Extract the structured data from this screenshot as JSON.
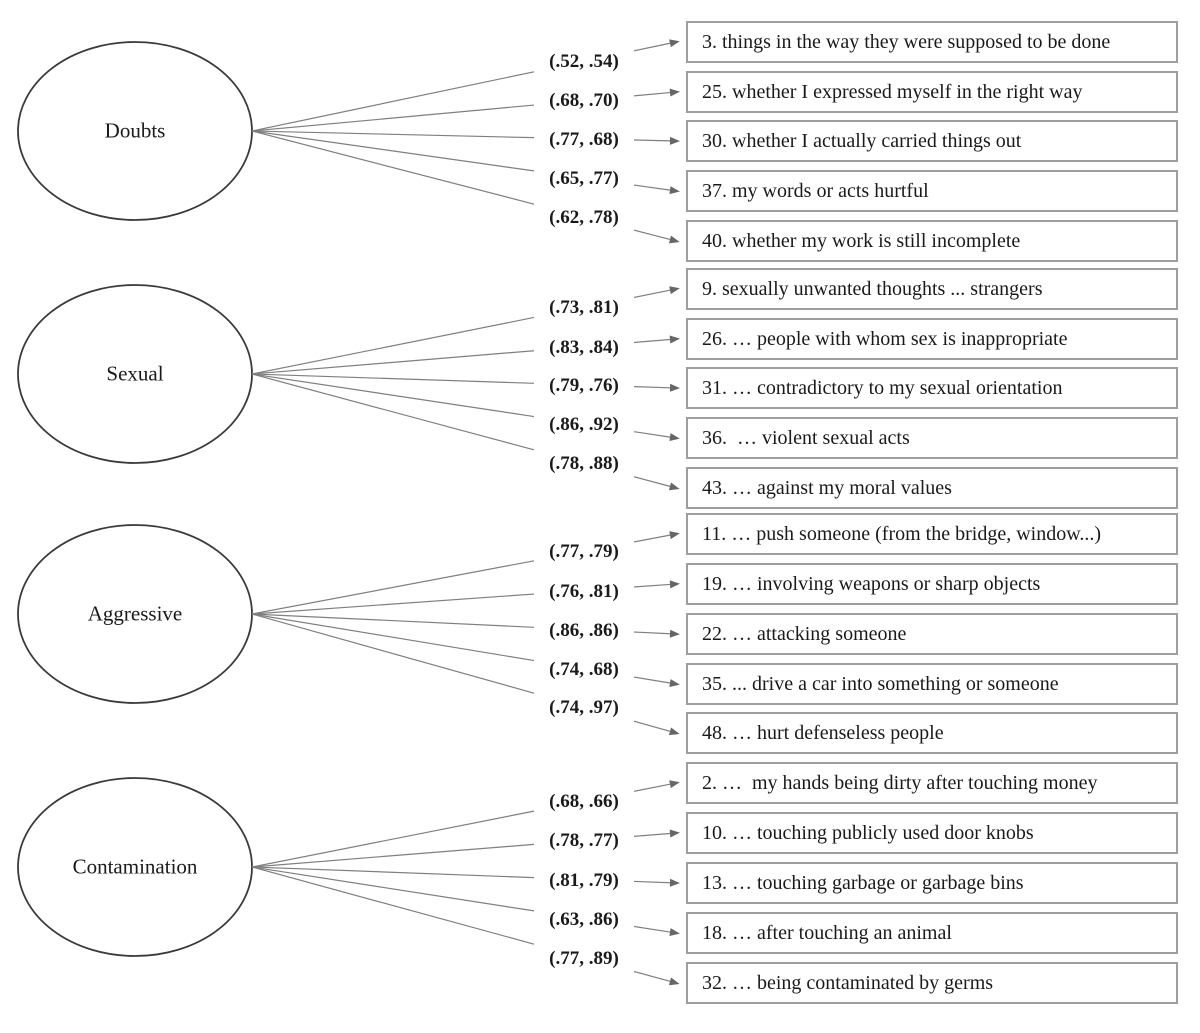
{
  "styles": {
    "background": "#ffffff",
    "line_color": "#7f7f7f",
    "arrowhead_color": "#666666",
    "box_border_color": "#9e9e9e",
    "ellipse_border_color": "#3a3a3a",
    "text_color": "#1a1a1a"
  },
  "diagram": {
    "factors": [
      {
        "name": "Doubts",
        "indicators": [
          {
            "loading": "(.52, .54)",
            "label": "3. things in the way they were supposed to be done"
          },
          {
            "loading": "(.68, .70)",
            "label": "25. whether I expressed myself in the right way"
          },
          {
            "loading": "(.77, .68)",
            "label": "30. whether I actually carried things out"
          },
          {
            "loading": "(.65, .77)",
            "label": "37. my words or acts hurtful"
          },
          {
            "loading": "(.62, .78)",
            "label": "40. whether my work is still incomplete"
          }
        ]
      },
      {
        "name": "Sexual",
        "indicators": [
          {
            "loading": "(.73, .81)",
            "label": "9. sexually unwanted thoughts ... strangers"
          },
          {
            "loading": "(.83, .84)",
            "label": "26. … people with whom sex is inappropriate"
          },
          {
            "loading": "(.79, .76)",
            "label": "31. … contradictory to my sexual orientation"
          },
          {
            "loading": "(.86, .92)",
            "label": "36.  … violent sexual acts"
          },
          {
            "loading": "(.78, .88)",
            "label": "43. … against my moral values"
          }
        ]
      },
      {
        "name": "Aggressive",
        "indicators": [
          {
            "loading": "(.77, .79)",
            "label": "11. … push someone (from the bridge, window...)"
          },
          {
            "loading": "(.76, .81)",
            "label": "19. … involving weapons or sharp objects"
          },
          {
            "loading": "(.86, .86)",
            "label": "22. … attacking someone"
          },
          {
            "loading": "(.74, .68)",
            "label": "35. ... drive a car into something or someone"
          },
          {
            "loading": "(.74, .97)",
            "label": "48. … hurt defenseless people"
          }
        ]
      },
      {
        "name": "Contamination",
        "indicators": [
          {
            "loading": "(.68, .66)",
            "label": "2. …  my hands being dirty after touching money"
          },
          {
            "loading": "(.78, .77)",
            "label": "10. … touching publicly used door knobs"
          },
          {
            "loading": "(.81, .79)",
            "label": "13. … touching garbage or garbage bins"
          },
          {
            "loading": "(.63, .86)",
            "label": "18. … after touching an animal"
          },
          {
            "loading": "(.77, .89)",
            "label": "32. … being contaminated by germs"
          }
        ]
      }
    ]
  }
}
